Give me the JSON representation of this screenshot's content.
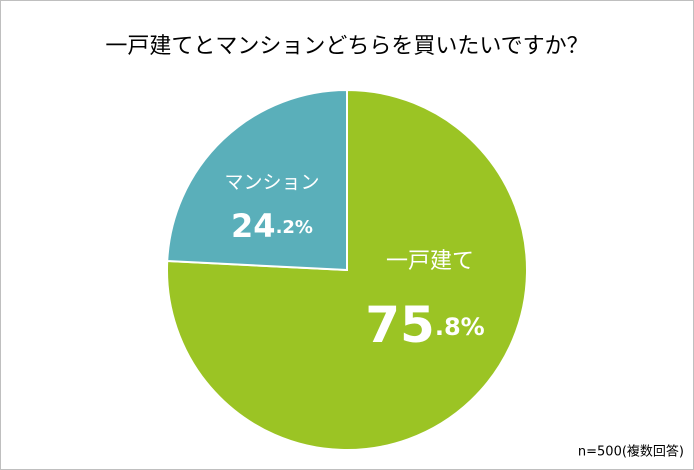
{
  "chart_data": {
    "type": "pie",
    "title": "一戸建てとマンションどちらを買いたいですか？",
    "categories": [
      "一戸建て",
      "マンション"
    ],
    "values": [
      75.8,
      24.2
    ],
    "value_labels": [
      "75.8%",
      "24.2%"
    ],
    "colors": [
      "#9bc424",
      "#5aafba"
    ],
    "note": "n=500(複数回答)"
  }
}
